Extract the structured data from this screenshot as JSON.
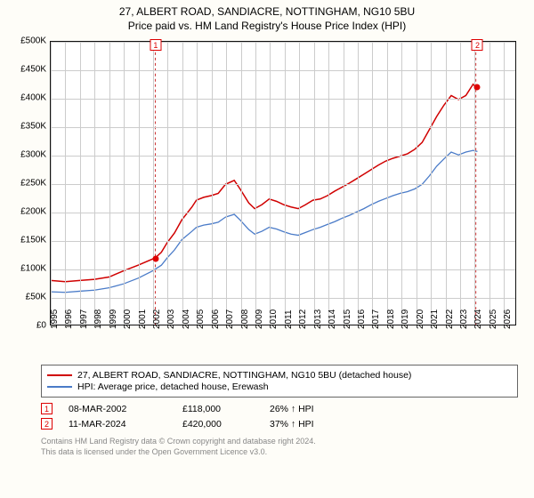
{
  "title": "27, ALBERT ROAD, SANDIACRE, NOTTINGHAM, NG10 5BU",
  "subtitle": "Price paid vs. HM Land Registry's House Price Index (HPI)",
  "chart": {
    "type": "line",
    "background_color": "#ffffff",
    "page_background": "#fefdf8",
    "grid_color": "#cccccc",
    "axis_color": "#111111",
    "xlim": [
      1995,
      2026.9
    ],
    "ylim": [
      0,
      500000
    ],
    "ytick_step": 50000,
    "yticks": [
      "£0",
      "£50K",
      "£100K",
      "£150K",
      "£200K",
      "£250K",
      "£300K",
      "£350K",
      "£400K",
      "£450K",
      "£500K"
    ],
    "xticks": [
      1995,
      1996,
      1997,
      1998,
      1999,
      2000,
      2001,
      2002,
      2003,
      2004,
      2005,
      2006,
      2007,
      2008,
      2009,
      2010,
      2011,
      2012,
      2013,
      2014,
      2015,
      2016,
      2017,
      2018,
      2019,
      2020,
      2021,
      2022,
      2023,
      2024,
      2025,
      2026
    ],
    "series": [
      {
        "name": "price_paid",
        "label": "27, ALBERT ROAD, SANDIACRE, NOTTINGHAM, NG10 5BU (detached house)",
        "color": "#d00000",
        "line_width": 1.5,
        "data": [
          [
            1995,
            78000
          ],
          [
            1996,
            76000
          ],
          [
            1997,
            78000
          ],
          [
            1998,
            80000
          ],
          [
            1999,
            84000
          ],
          [
            2000,
            95000
          ],
          [
            2001,
            105000
          ],
          [
            2002.18,
            118000
          ],
          [
            2002.6,
            128000
          ],
          [
            2003,
            145000
          ],
          [
            2003.5,
            162000
          ],
          [
            2004,
            185000
          ],
          [
            2004.7,
            208000
          ],
          [
            2005,
            220000
          ],
          [
            2005.5,
            225000
          ],
          [
            2006,
            228000
          ],
          [
            2006.5,
            232000
          ],
          [
            2007,
            248000
          ],
          [
            2007.6,
            255000
          ],
          [
            2008,
            240000
          ],
          [
            2008.6,
            215000
          ],
          [
            2009,
            205000
          ],
          [
            2009.5,
            212000
          ],
          [
            2010,
            222000
          ],
          [
            2010.5,
            218000
          ],
          [
            2011,
            212000
          ],
          [
            2011.5,
            208000
          ],
          [
            2012,
            205000
          ],
          [
            2012.5,
            212000
          ],
          [
            2013,
            220000
          ],
          [
            2013.5,
            222000
          ],
          [
            2014,
            228000
          ],
          [
            2014.5,
            236000
          ],
          [
            2015,
            243000
          ],
          [
            2015.5,
            250000
          ],
          [
            2016,
            258000
          ],
          [
            2016.5,
            266000
          ],
          [
            2017,
            274000
          ],
          [
            2017.5,
            282000
          ],
          [
            2018,
            289000
          ],
          [
            2018.5,
            294000
          ],
          [
            2019,
            298000
          ],
          [
            2019.5,
            302000
          ],
          [
            2020,
            310000
          ],
          [
            2020.5,
            322000
          ],
          [
            2021,
            345000
          ],
          [
            2021.5,
            368000
          ],
          [
            2022,
            388000
          ],
          [
            2022.5,
            405000
          ],
          [
            2023,
            398000
          ],
          [
            2023.5,
            405000
          ],
          [
            2024,
            425000
          ],
          [
            2024.19,
            420000
          ]
        ]
      },
      {
        "name": "hpi",
        "label": "HPI: Average price, detached house, Erewash",
        "color": "#4a7bc8",
        "line_width": 1.3,
        "data": [
          [
            1995,
            58000
          ],
          [
            1996,
            57000
          ],
          [
            1997,
            59000
          ],
          [
            1998,
            61000
          ],
          [
            1999,
            65000
          ],
          [
            2000,
            72000
          ],
          [
            2001,
            82000
          ],
          [
            2002,
            95000
          ],
          [
            2002.6,
            105000
          ],
          [
            2003,
            118000
          ],
          [
            2003.5,
            132000
          ],
          [
            2004,
            150000
          ],
          [
            2004.7,
            165000
          ],
          [
            2005,
            172000
          ],
          [
            2005.5,
            176000
          ],
          [
            2006,
            178000
          ],
          [
            2006.5,
            181000
          ],
          [
            2007,
            190000
          ],
          [
            2007.6,
            195000
          ],
          [
            2008,
            185000
          ],
          [
            2008.6,
            168000
          ],
          [
            2009,
            160000
          ],
          [
            2009.5,
            165000
          ],
          [
            2010,
            172000
          ],
          [
            2010.5,
            169000
          ],
          [
            2011,
            164000
          ],
          [
            2011.5,
            160000
          ],
          [
            2012,
            158000
          ],
          [
            2012.5,
            163000
          ],
          [
            2013,
            168000
          ],
          [
            2013.5,
            172000
          ],
          [
            2014,
            177000
          ],
          [
            2014.5,
            182000
          ],
          [
            2015,
            188000
          ],
          [
            2015.5,
            193000
          ],
          [
            2016,
            199000
          ],
          [
            2016.5,
            205000
          ],
          [
            2017,
            212000
          ],
          [
            2017.5,
            218000
          ],
          [
            2018,
            223000
          ],
          [
            2018.5,
            228000
          ],
          [
            2019,
            232000
          ],
          [
            2019.5,
            235000
          ],
          [
            2020,
            240000
          ],
          [
            2020.5,
            248000
          ],
          [
            2021,
            263000
          ],
          [
            2021.5,
            280000
          ],
          [
            2022,
            293000
          ],
          [
            2022.5,
            305000
          ],
          [
            2023,
            300000
          ],
          [
            2023.5,
            305000
          ],
          [
            2024,
            308000
          ],
          [
            2024.3,
            306000
          ]
        ]
      }
    ],
    "sale_markers": [
      {
        "n": "1",
        "x": 2002.18,
        "y": 118000,
        "box_top": -3
      },
      {
        "n": "2",
        "x": 2024.19,
        "y": 420000,
        "box_top": -3
      }
    ]
  },
  "legend": {
    "rows": [
      {
        "color": "#d00000",
        "label": "27, ALBERT ROAD, SANDIACRE, NOTTINGHAM, NG10 5BU (detached house)"
      },
      {
        "color": "#4a7bc8",
        "label": "HPI: Average price, detached house, Erewash"
      }
    ]
  },
  "sales": [
    {
      "n": "1",
      "date": "08-MAR-2002",
      "price": "£118,000",
      "diff": "26% ↑ HPI"
    },
    {
      "n": "2",
      "date": "11-MAR-2024",
      "price": "£420,000",
      "diff": "37% ↑ HPI"
    }
  ],
  "attribution": {
    "line1": "Contains HM Land Registry data © Crown copyright and database right 2024.",
    "line2": "This data is licensed under the Open Government Licence v3.0."
  }
}
